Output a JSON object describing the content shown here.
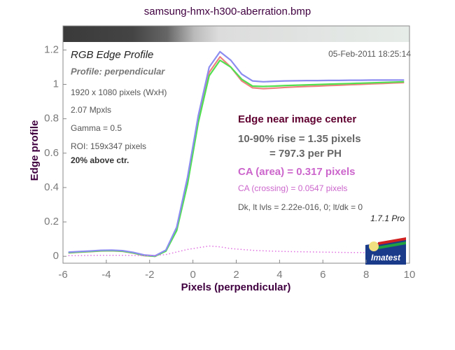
{
  "chart_data": {
    "type": "line",
    "title": "samsung-hmx-h300-aberration.bmp",
    "x_label": "Pixels (perpendicular)",
    "y_label": "Edge profile",
    "annotations": [
      "RGB Edge Profile",
      "Profile: perpendicular",
      "1920 x 1080 pixels (WxH)",
      "2.07 Mpxls",
      "Gamma = 0.5",
      "ROI: 159x347 pixels",
      "20% above ctr.",
      "05-Feb-2011 18:25:14",
      "Edge near image center",
      "10-90% rise = 1.35 pixels",
      "= 797.3 per PH",
      "CA (area) = 0.317 pixels",
      "CA (crossing) = 0.0547 pixels",
      "Dk, lt lvls = 2.22e-016, 0;  lt/dk = 0",
      "1.7.1  Pro",
      "Imatest"
    ],
    "x": [
      -5.75,
      -5.25,
      -4.75,
      -4.25,
      -3.75,
      -3.25,
      -2.75,
      -2.25,
      -1.75,
      -1.25,
      -0.75,
      -0.25,
      0.25,
      0.75,
      1.25,
      1.75,
      2.25,
      2.75,
      3.25,
      3.75,
      4.25,
      4.75,
      5.25,
      5.75,
      6.25,
      6.75,
      7.25,
      7.75,
      8.25,
      8.75,
      9.25,
      9.75
    ],
    "series": [
      {
        "color": "#f08080",
        "values": [
          0.02,
          0.024,
          0.027,
          0.031,
          0.032,
          0.029,
          0.019,
          0.004,
          0.0,
          0.032,
          0.16,
          0.44,
          0.8,
          1.07,
          1.16,
          1.1,
          1.02,
          0.98,
          0.975,
          0.978,
          0.982,
          0.985,
          0.988,
          0.99,
          0.993,
          0.995,
          0.998,
          1.0,
          1.003,
          1.005,
          1.008,
          1.01
        ]
      },
      {
        "color": "#50e050",
        "values": [
          0.021,
          0.025,
          0.028,
          0.032,
          0.033,
          0.03,
          0.02,
          0.005,
          0.0,
          0.03,
          0.15,
          0.42,
          0.78,
          1.05,
          1.14,
          1.1,
          1.03,
          0.99,
          0.988,
          0.99,
          0.993,
          0.995,
          0.997,
          0.999,
          1.001,
          1.003,
          1.005,
          1.007,
          1.009,
          1.011,
          1.013,
          1.015
        ]
      },
      {
        "color": "#8c8cf0",
        "values": [
          0.024,
          0.028,
          0.031,
          0.035,
          0.036,
          0.033,
          0.023,
          0.008,
          0.003,
          0.036,
          0.17,
          0.46,
          0.82,
          1.1,
          1.19,
          1.14,
          1.06,
          1.02,
          1.015,
          1.018,
          1.02,
          1.021,
          1.022,
          1.022,
          1.023,
          1.023,
          1.024,
          1.024,
          1.025,
          1.025,
          1.025,
          1.025
        ]
      },
      {
        "color": "#e070e0",
        "style": "dotted",
        "values": [
          0.004,
          0.004,
          0.005,
          0.006,
          0.006,
          0.006,
          0.005,
          0.004,
          0.005,
          0.01,
          0.025,
          0.04,
          0.05,
          0.06,
          0.055,
          0.045,
          0.04,
          0.035,
          0.032,
          0.03,
          0.028,
          0.027,
          0.026,
          0.025,
          0.024,
          0.023,
          0.022,
          0.022,
          0.021,
          0.021,
          0.02,
          0.02
        ]
      }
    ],
    "xlim": [
      -6,
      10
    ],
    "xticks": [
      -6,
      -4,
      -2,
      0,
      2,
      4,
      6,
      8,
      10
    ],
    "ylim": [
      -0.04,
      1.34
    ],
    "yticks": [
      0,
      0.2,
      0.4,
      0.6,
      0.8,
      1,
      1.2
    ]
  }
}
